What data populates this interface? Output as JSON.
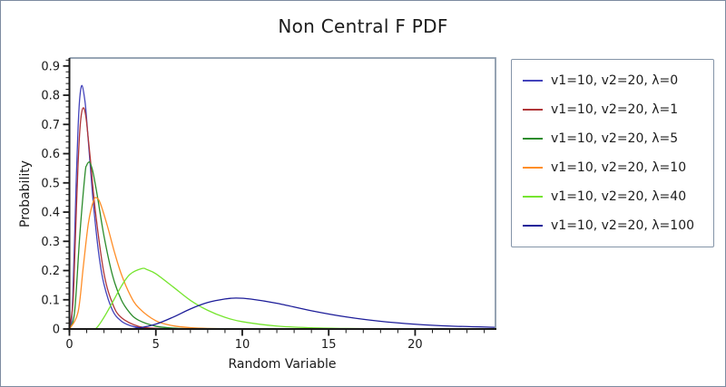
{
  "figure": {
    "title": "Non Central F PDF",
    "background": "#ffffff",
    "outer_border_color": "#7d8ba0"
  },
  "chart_data": {
    "type": "line",
    "title": "Non Central F PDF",
    "xlabel": "Random Variable",
    "ylabel": "Probability",
    "xlim": [
      0,
      24.65
    ],
    "ylim": [
      0,
      0.9
    ],
    "x_ticks_major": [
      0,
      5,
      10,
      15,
      20
    ],
    "x_minor_step": 1,
    "y_ticks_major": [
      0,
      0.1,
      0.2,
      0.3,
      0.4,
      0.5,
      0.6,
      0.7,
      0.8,
      0.9
    ],
    "y_minor_step": 0.02,
    "grid": false,
    "legend_position": "outside-right",
    "axis_color": "#1a1a1a",
    "frame_color": "#8a99ab",
    "tick_label_color": "#1a1a1a",
    "series": [
      {
        "label": "v1=10, v2=20, λ=0",
        "color": "#4343bb",
        "points": [
          [
            0,
            0
          ],
          [
            0.1,
            0.015
          ],
          [
            0.15,
            0.054
          ],
          [
            0.2,
            0.12
          ],
          [
            0.3,
            0.311
          ],
          [
            0.4,
            0.52
          ],
          [
            0.5,
            0.688
          ],
          [
            0.6,
            0.792
          ],
          [
            0.73,
            0.833
          ],
          [
            0.9,
            0.779
          ],
          [
            1.0,
            0.714
          ],
          [
            1.2,
            0.563
          ],
          [
            1.4,
            0.42
          ],
          [
            1.7,
            0.256
          ],
          [
            2.0,
            0.153
          ],
          [
            2.5,
            0.063
          ],
          [
            3.0,
            0.027
          ],
          [
            3.5,
            0.012
          ],
          [
            4.0,
            0.0056
          ],
          [
            5.0,
            0.0013
          ],
          [
            6.0,
            0.0004
          ],
          [
            8.0,
            0.0001
          ],
          [
            10.0,
            0
          ],
          [
            24.65,
            0
          ]
        ]
      },
      {
        "label": "v1=10, v2=20, λ=1",
        "color": "#b03638",
        "points": [
          [
            0,
            0
          ],
          [
            0.2,
            0.084
          ],
          [
            0.3,
            0.231
          ],
          [
            0.4,
            0.406
          ],
          [
            0.5,
            0.563
          ],
          [
            0.6,
            0.677
          ],
          [
            0.7,
            0.738
          ],
          [
            0.8,
            0.757
          ],
          [
            0.9,
            0.744
          ],
          [
            1.0,
            0.704
          ],
          [
            1.2,
            0.588
          ],
          [
            1.5,
            0.404
          ],
          [
            2.0,
            0.19
          ],
          [
            2.5,
            0.086
          ],
          [
            3.0,
            0.039
          ],
          [
            4.0,
            0.0089
          ],
          [
            5.0,
            0.0023
          ],
          [
            6.0,
            0.0007
          ],
          [
            8.0,
            0.0001
          ],
          [
            10.0,
            0
          ],
          [
            24.65,
            0
          ]
        ]
      },
      {
        "label": "v1=10, v2=20, λ=5",
        "color": "#2c8c2c",
        "points": [
          [
            0,
            0
          ],
          [
            0.3,
            0.059
          ],
          [
            0.6,
            0.321
          ],
          [
            0.9,
            0.529
          ],
          [
            1.0,
            0.56
          ],
          [
            1.12,
            0.571
          ],
          [
            1.2,
            0.567
          ],
          [
            1.35,
            0.54
          ],
          [
            1.6,
            0.461
          ],
          [
            2.0,
            0.318
          ],
          [
            2.5,
            0.182
          ],
          [
            3.0,
            0.1
          ],
          [
            3.5,
            0.055
          ],
          [
            4.0,
            0.03
          ],
          [
            5.0,
            0.0095
          ],
          [
            6.0,
            0.0032
          ],
          [
            7.0,
            0.0012
          ],
          [
            8.0,
            0.0005
          ],
          [
            10.0,
            0.0001
          ],
          [
            12.0,
            0
          ],
          [
            24.65,
            0
          ]
        ]
      },
      {
        "label": "v1=10, v2=20, λ=10",
        "color": "#ff8e28",
        "points": [
          [
            0,
            0
          ],
          [
            0.5,
            0.058
          ],
          [
            0.8,
            0.212
          ],
          [
            1.1,
            0.363
          ],
          [
            1.4,
            0.44
          ],
          [
            1.6,
            0.448
          ],
          [
            1.8,
            0.428
          ],
          [
            2.2,
            0.352
          ],
          [
            2.6,
            0.264
          ],
          [
            3.0,
            0.188
          ],
          [
            3.5,
            0.118
          ],
          [
            4.0,
            0.073
          ],
          [
            5.0,
            0.028
          ],
          [
            6.0,
            0.011
          ],
          [
            7.0,
            0.0046
          ],
          [
            8.0,
            0.002
          ],
          [
            10.0,
            0.0004
          ],
          [
            12.0,
            0.0001
          ],
          [
            14.0,
            0
          ],
          [
            24.65,
            0
          ]
        ]
      },
      {
        "label": "v1=10, v2=20, λ=40",
        "color": "#76e52f",
        "points": [
          [
            0,
            0
          ],
          [
            1.0,
            0
          ],
          [
            1.5,
            0.0001
          ],
          [
            2.0,
            0.04
          ],
          [
            2.5,
            0.092
          ],
          [
            3.0,
            0.146
          ],
          [
            3.5,
            0.187
          ],
          [
            4.2,
            0.207
          ],
          [
            4.5,
            0.203
          ],
          [
            5.0,
            0.189
          ],
          [
            6.0,
            0.144
          ],
          [
            7.0,
            0.098
          ],
          [
            8.0,
            0.064
          ],
          [
            9.0,
            0.04
          ],
          [
            10.0,
            0.025
          ],
          [
            12.0,
            0.01
          ],
          [
            14.0,
            0.0041
          ],
          [
            16.0,
            0.0018
          ],
          [
            18.0,
            0.0008
          ],
          [
            20.0,
            0.0004
          ],
          [
            22.0,
            0.0002
          ],
          [
            24.65,
            0.0001
          ]
        ]
      },
      {
        "label": "v1=10, v2=20, λ=100",
        "color": "#1d1d99",
        "points": [
          [
            0,
            0
          ],
          [
            3.0,
            0.0002
          ],
          [
            4.0,
            0.0036
          ],
          [
            5.0,
            0.0166
          ],
          [
            6.0,
            0.0405
          ],
          [
            7.0,
            0.0687
          ],
          [
            8.0,
            0.0906
          ],
          [
            9.0,
            0.1027
          ],
          [
            9.65,
            0.1058
          ],
          [
            10.5,
            0.1023
          ],
          [
            12.0,
            0.088
          ],
          [
            14.0,
            0.0625
          ],
          [
            16.0,
            0.0414
          ],
          [
            18.0,
            0.0263
          ],
          [
            20.0,
            0.0163
          ],
          [
            22.0,
            0.0101
          ],
          [
            24.65,
            0.0058
          ]
        ]
      }
    ]
  }
}
